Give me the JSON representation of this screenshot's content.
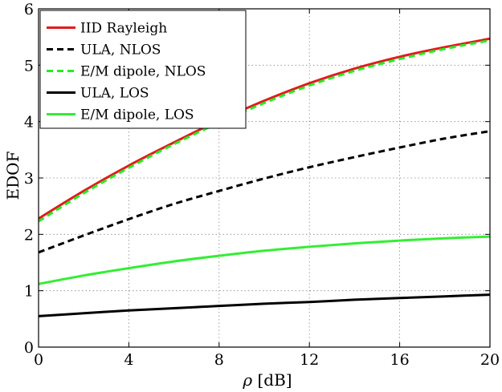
{
  "chart_data": {
    "type": "line",
    "title": "",
    "xlabel_symbol": "ρ",
    "xlabel_unit": " [dB]",
    "ylabel": "EDOF",
    "xlim": [
      0,
      20
    ],
    "ylim": [
      0,
      6
    ],
    "xticks": [
      "0",
      "4",
      "8",
      "12",
      "16",
      "20"
    ],
    "yticks": [
      "0",
      "1",
      "2",
      "3",
      "4",
      "5",
      "6"
    ],
    "grid": true,
    "legend_position": "top-left",
    "x": [
      0,
      2,
      4,
      6,
      8,
      10,
      12,
      14,
      16,
      18,
      20
    ],
    "series": [
      {
        "name": "IID Rayleigh",
        "color": "#e41a1c",
        "dash": "solid",
        "values": [
          2.28,
          2.77,
          3.22,
          3.63,
          4.02,
          4.37,
          4.68,
          4.94,
          5.15,
          5.32,
          5.47
        ]
      },
      {
        "name": "ULA, NLOS",
        "color": "#000000",
        "dash": "dashed",
        "values": [
          1.68,
          1.98,
          2.27,
          2.54,
          2.77,
          2.99,
          3.19,
          3.37,
          3.54,
          3.7,
          3.83
        ]
      },
      {
        "name": "E/M dipole, NLOS",
        "color": "#22ee22",
        "dash": "dashed",
        "values": [
          2.23,
          2.73,
          3.18,
          3.6,
          3.98,
          4.33,
          4.64,
          4.9,
          5.11,
          5.29,
          5.44
        ]
      },
      {
        "name": "ULA, LOS",
        "color": "#000000",
        "dash": "solid",
        "values": [
          0.55,
          0.6,
          0.65,
          0.69,
          0.73,
          0.77,
          0.8,
          0.84,
          0.87,
          0.9,
          0.93
        ]
      },
      {
        "name": "E/M dipole, LOS",
        "color": "#33ee33",
        "dash": "solid",
        "values": [
          1.12,
          1.27,
          1.4,
          1.52,
          1.62,
          1.71,
          1.78,
          1.84,
          1.89,
          1.93,
          1.96
        ]
      }
    ]
  }
}
